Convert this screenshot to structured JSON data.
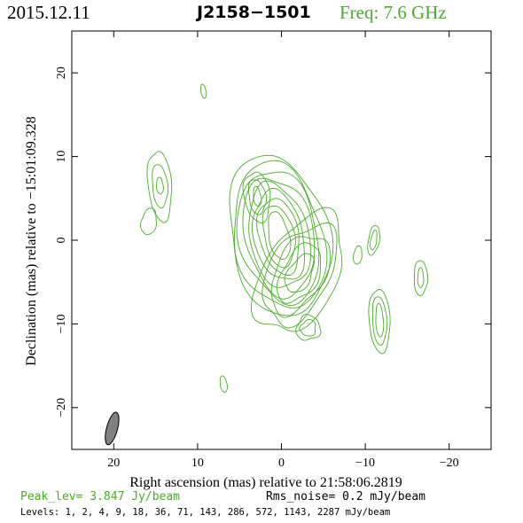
{
  "header": {
    "date": "2015.12.11",
    "source": "J2158−1501",
    "freq": "Freq: 7.6 GHz"
  },
  "colors": {
    "contour": "#4aaa2a",
    "frame": "#000000",
    "beam": "#808080"
  },
  "chart_data": {
    "type": "contour",
    "xlabel": "Right ascension (mas) relative to 21:58:06.2819",
    "ylabel": "Declination (mas) relative to −15:01:09.328",
    "xlim": [
      25,
      -25
    ],
    "ylim": [
      -25,
      25
    ],
    "xticks": [
      20,
      10,
      0,
      -10,
      -20
    ],
    "yticks": [
      20,
      10,
      0,
      -10,
      -20
    ],
    "xtick_labels": [
      "20",
      "10",
      "0",
      "−10",
      "−20"
    ],
    "ytick_labels": [
      "20",
      "10",
      "0",
      "−10",
      "−20"
    ],
    "beam": {
      "x": 20.2,
      "y": -22.5,
      "major": 4.0,
      "minor": 1.3,
      "pa_deg": -15
    },
    "peak": "Peak_lev=  3.847 Jy/beam",
    "rms": "Rms_noise=  0.2 mJy/beam",
    "levels_text": "Levels:   1,    2,    4,    9,   18,   36,   71, 143, 286, 572, 1143, 2287 mJy/beam",
    "levels": [
      1,
      2,
      4,
      9,
      18,
      36,
      71,
      143,
      286,
      572,
      1143,
      2287
    ],
    "components": [
      {
        "name": "core",
        "x": 0.3,
        "y": 0.5,
        "rx": 1.2,
        "ry": 2.9,
        "rot": -12,
        "nlev": 9,
        "growx": 0.58,
        "growy": 0.85,
        "jit": 0.05
      },
      {
        "name": "jet",
        "x": -2.2,
        "y": -4.0,
        "rx": 1.4,
        "ry": 2.5,
        "rot": 28,
        "nlev": 5,
        "growx": 0.75,
        "growy": 1.3,
        "jit": 0.08
      },
      {
        "name": "northeast-blob",
        "x": 2.9,
        "y": 5.2,
        "rx": 0.45,
        "ry": 1.2,
        "rot": -8,
        "nlev": 3,
        "growx": 0.55,
        "growy": 0.9,
        "jit": 0.06
      },
      {
        "name": "knot-southeast",
        "x": -3.2,
        "y": -10.5,
        "rx": 0.9,
        "ry": 1.0,
        "rot": 25,
        "nlev": 2,
        "growx": 0.5,
        "growy": 0.5,
        "jit": 0.1
      },
      {
        "name": "east-lobe",
        "x": 14.5,
        "y": 6.5,
        "rx": 0.4,
        "ry": 1.0,
        "rot": -5,
        "nlev": 3,
        "growx": 0.5,
        "growy": 1.6,
        "jit": 0.05
      },
      {
        "name": "east-lobe-lower",
        "x": 15.8,
        "y": 2.2,
        "rx": 0.9,
        "ry": 1.6,
        "rot": 10,
        "nlev": 1,
        "growx": 0.4,
        "growy": 0.5,
        "jit": 0.06
      },
      {
        "name": "southwest-knot",
        "x": -11.7,
        "y": -9.6,
        "rx": 0.45,
        "ry": 2.0,
        "rot": -3,
        "nlev": 3,
        "growx": 0.4,
        "growy": 0.9,
        "jit": 0.04
      },
      {
        "name": "west-knot",
        "x": -11.0,
        "y": 0.0,
        "rx": 0.35,
        "ry": 1.2,
        "rot": 10,
        "nlev": 2,
        "growx": 0.3,
        "growy": 0.6,
        "jit": 0.05
      },
      {
        "name": "west-small-knot",
        "x": -9.1,
        "y": -1.8,
        "rx": 0.5,
        "ry": 1.1,
        "rot": 8,
        "nlev": 1,
        "growx": 0.3,
        "growy": 0.4,
        "jit": 0.05
      },
      {
        "name": "far-west-knot",
        "x": -16.6,
        "y": -4.5,
        "rx": 0.35,
        "ry": 1.2,
        "rot": 0,
        "nlev": 2,
        "growx": 0.45,
        "growy": 0.9,
        "jit": 0.05
      },
      {
        "name": "north-speck",
        "x": 9.3,
        "y": 17.8,
        "rx": 0.3,
        "ry": 0.85,
        "rot": -10,
        "nlev": 1,
        "growx": 0,
        "growy": 0,
        "jit": 0.03
      },
      {
        "name": "south-speck",
        "x": 6.9,
        "y": -17.2,
        "rx": 0.4,
        "ry": 1.0,
        "rot": -10,
        "nlev": 1,
        "growx": 0,
        "growy": 0,
        "jit": 0.03
      }
    ]
  }
}
